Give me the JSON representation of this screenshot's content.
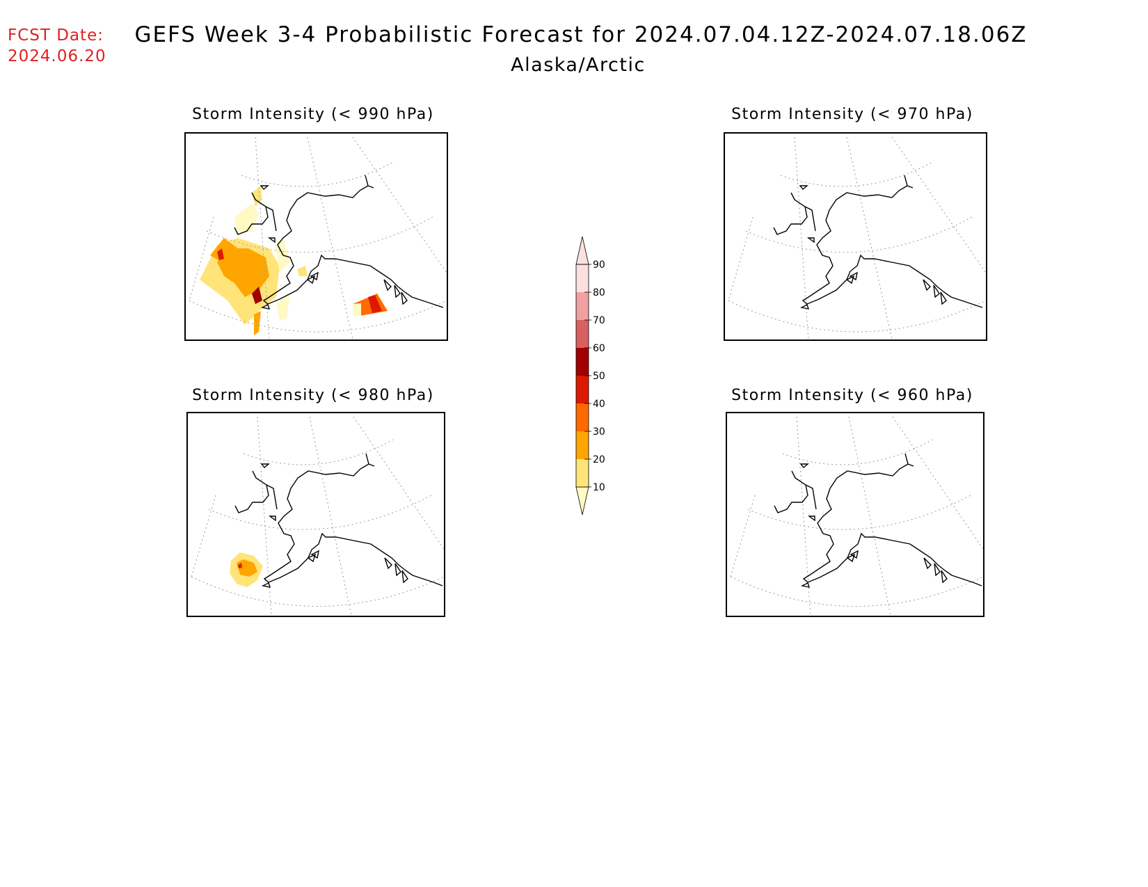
{
  "header": {
    "fcst_label": "FCST Date:",
    "fcst_date": "2024.06.20",
    "title": "GEFS Week 3-4 Probabilistic Forecast for 2024.07.04.12Z-2024.07.18.06Z",
    "subtitle": "Alaska/Arctic"
  },
  "panels": [
    {
      "id": "p990",
      "title": "Storm Intensity (< 990 hPa)"
    },
    {
      "id": "p970",
      "title": "Storm Intensity (< 970 hPa)"
    },
    {
      "id": "p980",
      "title": "Storm Intensity (< 980 hPa)"
    },
    {
      "id": "p960",
      "title": "Storm Intensity (< 960 hPa)"
    }
  ],
  "colorbar": {
    "levels": [
      "10",
      "20",
      "30",
      "40",
      "50",
      "60",
      "70",
      "80",
      "90"
    ],
    "colors": [
      "#fff9c4",
      "#ffe47a",
      "#ffa500",
      "#ff6a00",
      "#dd1a00",
      "#a00000",
      "#d96060",
      "#f0a0a0",
      "#fbe0e0"
    ]
  }
}
